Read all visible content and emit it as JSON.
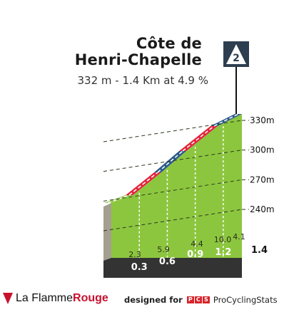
{
  "climb": {
    "name_line1": "Côte de",
    "name_line2": "Henri-Chapelle",
    "subtitle": "332 m - 1.4 Km at 4.9 %",
    "category": "2"
  },
  "chart_data": {
    "type": "area",
    "title": "Côte de Henri-Chapelle",
    "y_ticks": [
      "330m",
      "300m",
      "270m",
      "240m"
    ],
    "y_tick_values": [
      330,
      300,
      270,
      240
    ],
    "distance_total_label": "1.4",
    "distance_markers": [
      "0.3",
      "0.6",
      "0.9",
      "1.2"
    ],
    "distance_marker_values": [
      0.3,
      0.6,
      0.9,
      1.2
    ],
    "gradient_labels": [
      "2.3",
      "5.9",
      "4.4",
      "10.0",
      "4.1"
    ],
    "gradient_values": [
      2.3,
      5.9,
      4.4,
      10.0,
      4.1
    ],
    "colors": {
      "profile": "#8cc63f",
      "side": "#a49f90",
      "ground": "#333333",
      "stripe_red": "#e4243c",
      "stripe_blue": "#2c5a8a",
      "stripe_green": "#8cc63f"
    }
  },
  "footer": {
    "brand_prefix": "La Flamme",
    "brand_suffix": "Rouge",
    "designed_for": "designed for",
    "pcs_letters": [
      "P",
      "C",
      "S"
    ],
    "pcs_name": "ProCyclingStats"
  }
}
